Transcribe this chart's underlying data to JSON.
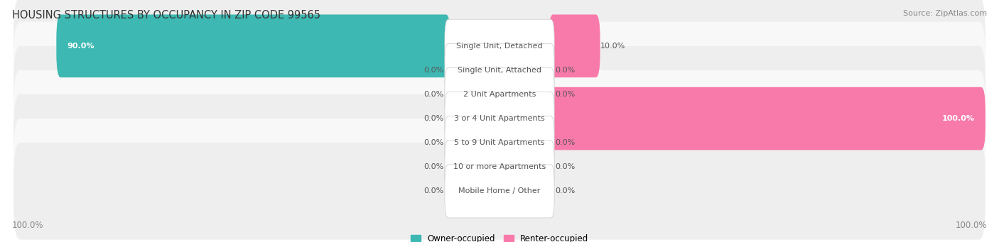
{
  "title": "HOUSING STRUCTURES BY OCCUPANCY IN ZIP CODE 99565",
  "source": "Source: ZipAtlas.com",
  "categories": [
    "Single Unit, Detached",
    "Single Unit, Attached",
    "2 Unit Apartments",
    "3 or 4 Unit Apartments",
    "5 to 9 Unit Apartments",
    "10 or more Apartments",
    "Mobile Home / Other"
  ],
  "owner_values": [
    90.0,
    0.0,
    0.0,
    0.0,
    0.0,
    0.0,
    0.0
  ],
  "renter_values": [
    10.0,
    0.0,
    0.0,
    100.0,
    0.0,
    0.0,
    0.0
  ],
  "owner_color": "#3db8b2",
  "renter_color": "#f87aaa",
  "row_bg_even": "#eeeeee",
  "row_bg_odd": "#f8f8f8",
  "label_color": "#555555",
  "title_color": "#333333",
  "source_color": "#888888",
  "axis_label_color": "#888888",
  "center_box_color": "#ffffff",
  "center_box_edge": "#cccccc",
  "background_color": "#ffffff",
  "left_axis_label": "100.0%",
  "right_axis_label": "100.0%",
  "legend_owner": "Owner-occupied",
  "legend_renter": "Renter-occupied",
  "figsize": [
    14.06,
    3.41
  ],
  "dpi": 100
}
